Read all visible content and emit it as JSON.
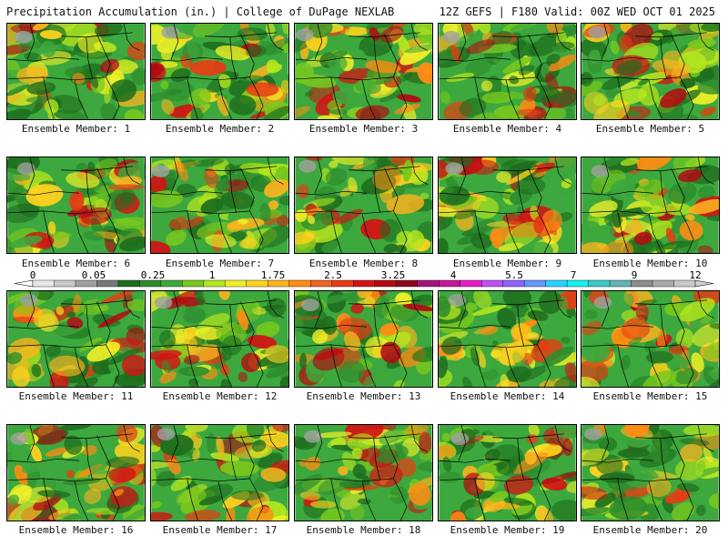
{
  "header": {
    "title": "Precipitation Accumulation (in.) | College of DuPage NEXLAB",
    "run_info": "12Z GEFS | F180 Valid: 00Z WED OCT 01 2025"
  },
  "panels": [
    {
      "label": "Ensemble Member: 1"
    },
    {
      "label": "Ensemble Member: 2"
    },
    {
      "label": "Ensemble Member: 3"
    },
    {
      "label": "Ensemble Member: 4"
    },
    {
      "label": "Ensemble Member: 5"
    },
    {
      "label": "Ensemble Member: 6"
    },
    {
      "label": "Ensemble Member: 7"
    },
    {
      "label": "Ensemble Member: 8"
    },
    {
      "label": "Ensemble Member: 9"
    },
    {
      "label": "Ensemble Member: 10"
    },
    {
      "label": "Ensemble Member: 11"
    },
    {
      "label": "Ensemble Member: 12"
    },
    {
      "label": "Ensemble Member: 13"
    },
    {
      "label": "Ensemble Member: 14"
    },
    {
      "label": "Ensemble Member: 15"
    },
    {
      "label": "Ensemble Member: 16"
    },
    {
      "label": "Ensemble Member: 17"
    },
    {
      "label": "Ensemble Member: 18"
    },
    {
      "label": "Ensemble Member: 19"
    },
    {
      "label": "Ensemble Member: 20"
    }
  ],
  "colorbar": {
    "tick_labels": [
      "0",
      "0.05",
      "0.25",
      "1",
      "1.75",
      "2.5",
      "3.25",
      "4",
      "5.5",
      "7",
      "9",
      "12"
    ],
    "colors": [
      "#e8e8e8",
      "#c8c8c8",
      "#a0a0a0",
      "#787878",
      "#1e6e1e",
      "#2d8c2d",
      "#3da83d",
      "#78c81e",
      "#b4e61e",
      "#f0f028",
      "#ffd21e",
      "#ffb41e",
      "#ff8c14",
      "#f0641e",
      "#e63c14",
      "#d21414",
      "#b40a14",
      "#8c0a1e",
      "#a0147d",
      "#c8149b",
      "#e61ec8",
      "#be50f0",
      "#8c64ff",
      "#6496ff",
      "#28d2ff",
      "#14f0f0",
      "#3cc8c8",
      "#64b4b4",
      "#8c8c8c",
      "#aaaaaa",
      "#c8c8c8"
    ]
  }
}
